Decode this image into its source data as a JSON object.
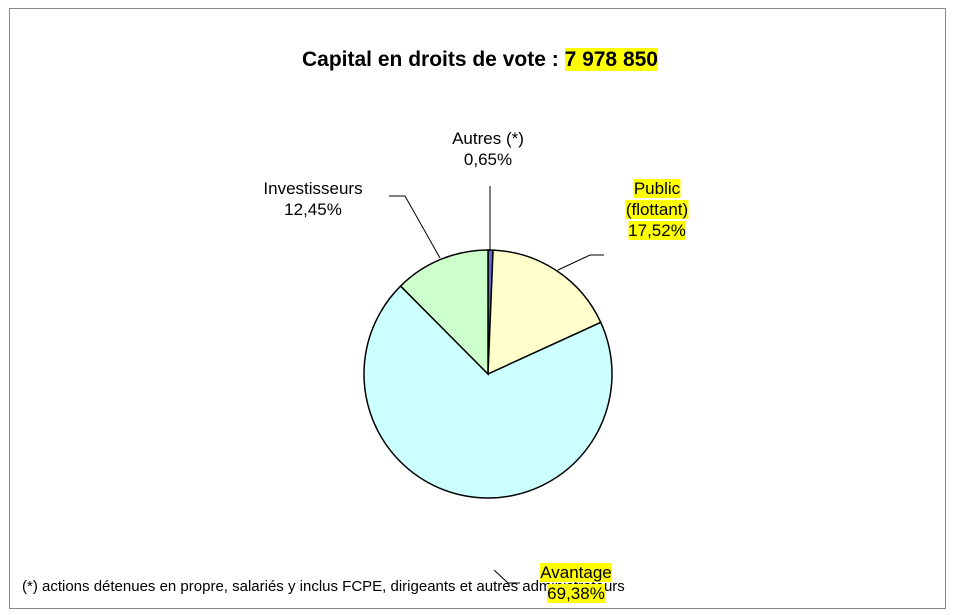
{
  "chart_data": {
    "type": "pie",
    "title": "Capital en droits de vote :",
    "title_highlight": "7 978 850",
    "categories": [
      "Autres (*)",
      "Public (flottant)",
      "Avantage",
      "Investisseurs"
    ],
    "values": [
      0.65,
      17.52,
      69.38,
      12.45
    ],
    "value_labels": [
      "0,65%",
      "17,52%",
      "69,38%",
      "12,45%"
    ],
    "colors": [
      "#6666cc",
      "#ffffcc",
      "#ccffff",
      "#ccffcc"
    ],
    "highlighted": [
      false,
      true,
      true,
      false
    ],
    "footnote": "(*) actions détenues en propre, salariés y inclus FCPE, dirigeants et autres administrateurs"
  }
}
